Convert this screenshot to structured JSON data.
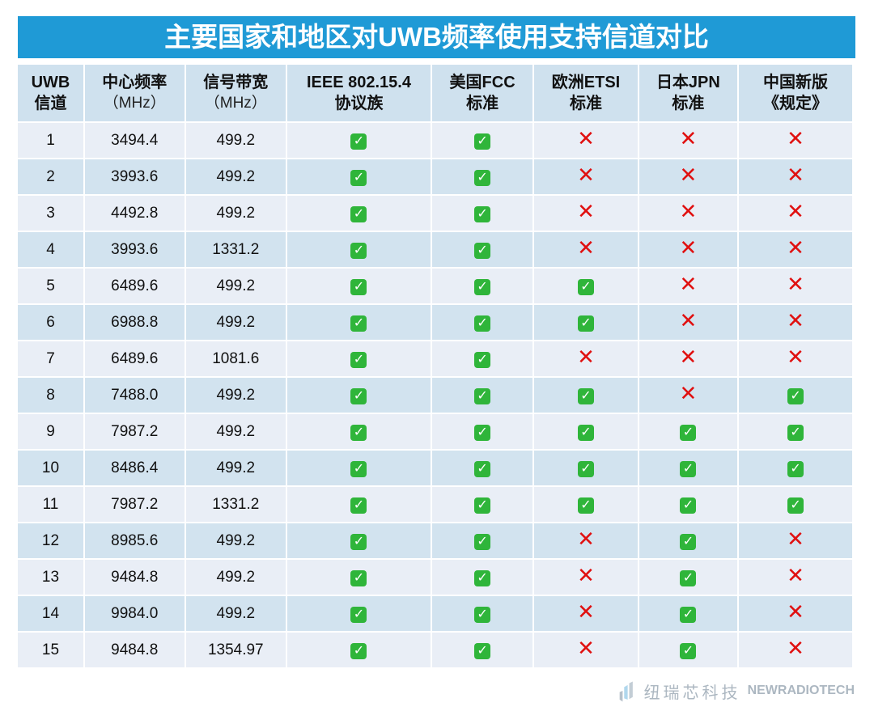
{
  "title": "主要国家和地区对UWB频率使用支持信道对比",
  "headers": [
    {
      "main": "UWB",
      "sub": "信道"
    },
    {
      "main": "中心频率",
      "sub": "（MHz）"
    },
    {
      "main": "信号带宽",
      "sub": "（MHz）"
    },
    {
      "main": "IEEE 802.15.4",
      "sub": "协议族"
    },
    {
      "main": "美国FCC",
      "sub": "标准"
    },
    {
      "main": "欧洲ETSI",
      "sub": "标准"
    },
    {
      "main": "日本JPN",
      "sub": "标准"
    },
    {
      "main": "中国新版",
      "sub": "《规定》"
    }
  ],
  "rows": [
    [
      "1",
      "3494.4",
      "499.2",
      true,
      true,
      false,
      false,
      false
    ],
    [
      "2",
      "3993.6",
      "499.2",
      true,
      true,
      false,
      false,
      false
    ],
    [
      "3",
      "4492.8",
      "499.2",
      true,
      true,
      false,
      false,
      false
    ],
    [
      "4",
      "3993.6",
      "1331.2",
      true,
      true,
      false,
      false,
      false
    ],
    [
      "5",
      "6489.6",
      "499.2",
      true,
      true,
      true,
      false,
      false
    ],
    [
      "6",
      "6988.8",
      "499.2",
      true,
      true,
      true,
      false,
      false
    ],
    [
      "7",
      "6489.6",
      "1081.6",
      true,
      true,
      false,
      false,
      false
    ],
    [
      "8",
      "7488.0",
      "499.2",
      true,
      true,
      true,
      false,
      true
    ],
    [
      "9",
      "7987.2",
      "499.2",
      true,
      true,
      true,
      true,
      true
    ],
    [
      "10",
      "8486.4",
      "499.2",
      true,
      true,
      true,
      true,
      true
    ],
    [
      "11",
      "7987.2",
      "1331.2",
      true,
      true,
      true,
      true,
      true
    ],
    [
      "12",
      "8985.6",
      "499.2",
      true,
      true,
      false,
      true,
      false
    ],
    [
      "13",
      "9484.8",
      "499.2",
      true,
      true,
      false,
      true,
      false
    ],
    [
      "14",
      "9984.0",
      "499.2",
      true,
      true,
      false,
      true,
      false
    ],
    [
      "15",
      "9484.8",
      "1354.97",
      true,
      true,
      false,
      true,
      false
    ]
  ],
  "icons": {
    "supported": "check-mark-icon",
    "unsupported": "cross-icon"
  },
  "watermark": {
    "cn": "纽瑞芯科技",
    "en": "NEWRADIOTECH"
  },
  "colors": {
    "title_bg": "#1f9ad6",
    "check": "#2fb53a",
    "cross": "#e01010"
  }
}
